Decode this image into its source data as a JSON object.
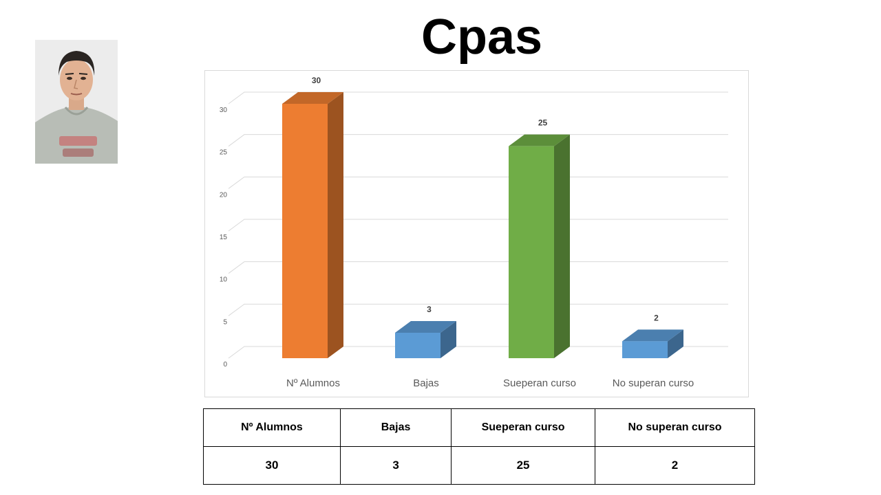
{
  "page": {
    "title": "Cpas"
  },
  "chart_data": {
    "type": "bar",
    "style": "3d-column",
    "categories": [
      "Nº Alumnos",
      "Bajas",
      "Sueperan curso",
      "No superan curso"
    ],
    "values": [
      30,
      3,
      25,
      2
    ],
    "data_labels": [
      "30",
      "3",
      "25",
      "2"
    ],
    "colors": [
      "#ED7D31",
      "#5B9BD5",
      "#70AD47",
      "#5B9BD5"
    ],
    "ylim": [
      0,
      30
    ],
    "yticks": [
      "0",
      "5",
      "10",
      "15",
      "20",
      "25",
      "30"
    ],
    "grid": true,
    "legend": "none",
    "title": "",
    "xlabel": "",
    "ylabel": ""
  },
  "table": {
    "headers": [
      "Nº Alumnos",
      "Bajas",
      "Sueperan curso",
      "No superan curso"
    ],
    "rows": [
      [
        "30",
        "3",
        "25",
        "2"
      ]
    ]
  }
}
